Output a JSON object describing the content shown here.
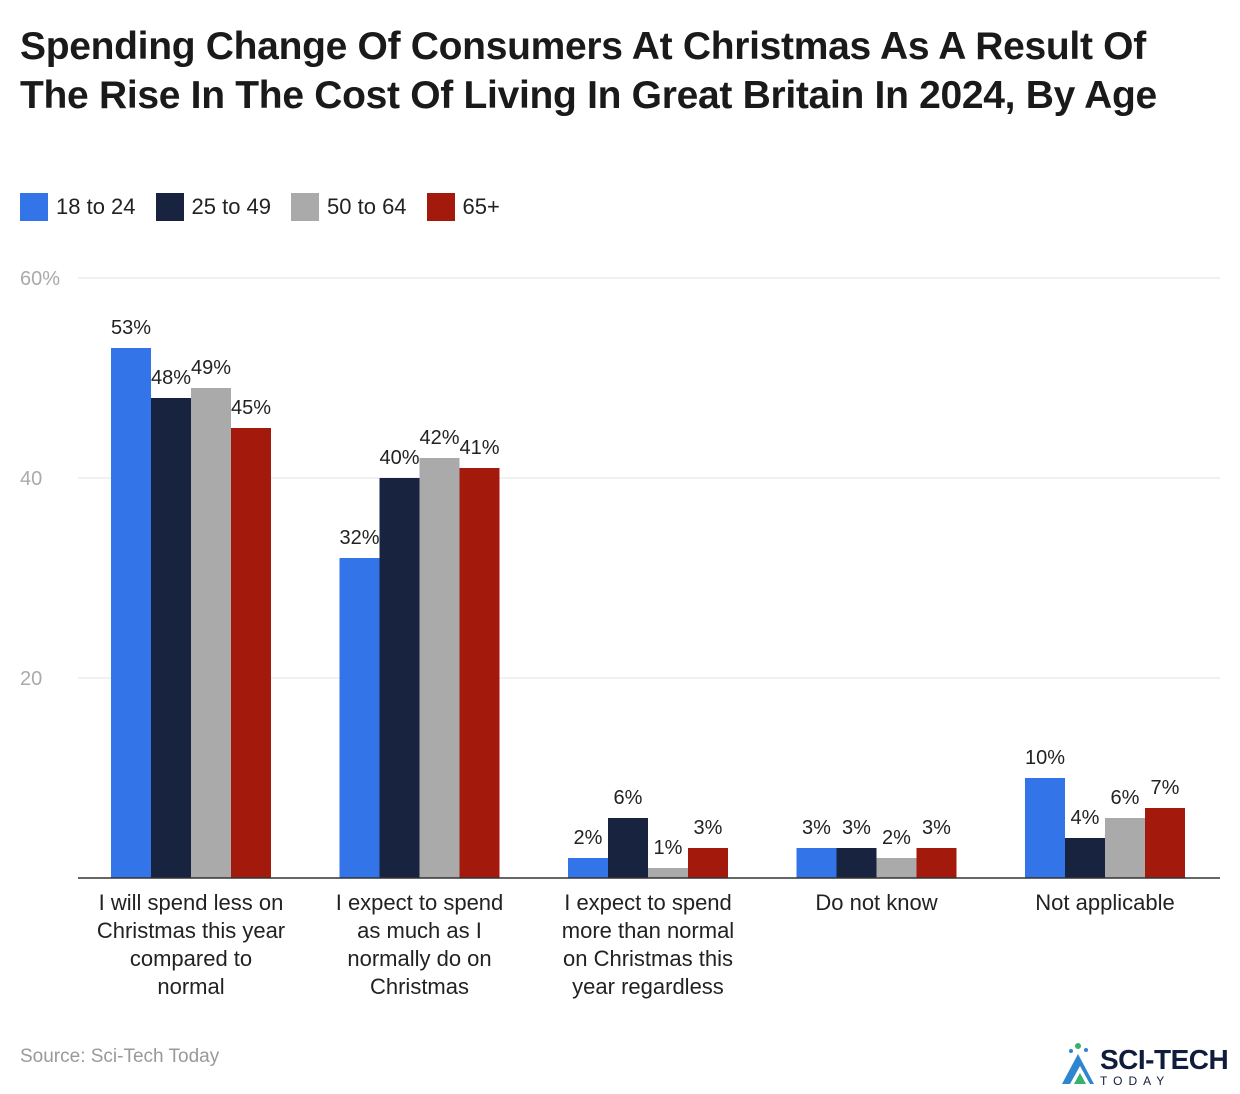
{
  "title": "Spending Change Of Consumers At Christmas As A Result Of The Rise In The Cost Of Living In Great Britain In 2024, By Age",
  "source": "Source: Sci-Tech Today",
  "logo": {
    "main": "SCI-TECH",
    "sub": "TODAY"
  },
  "colors": {
    "grid": "#e3e3e3",
    "axis": "#333333",
    "tick_label": "#aaaaaa",
    "text": "#222222"
  },
  "chart_data": {
    "type": "bar",
    "title": "Spending Change Of Consumers At Christmas As A Result Of The Rise In The Cost Of Living In Great Britain In 2024, By Age",
    "xlabel": "",
    "ylabel": "",
    "ylim": [
      0,
      60
    ],
    "yticks": [
      20,
      40,
      60
    ],
    "ytick_labels": [
      "20",
      "40",
      "60%"
    ],
    "grid": true,
    "legend_position": "top-left",
    "categories": [
      [
        "I will spend less on",
        "Christmas this year",
        "compared to",
        "normal"
      ],
      [
        "I expect to spend",
        "as much as I",
        "normally do on",
        "Christmas"
      ],
      [
        "I expect to spend",
        "more than normal",
        "on Christmas this",
        "year regardless"
      ],
      [
        "Do not know"
      ],
      [
        "Not applicable"
      ]
    ],
    "series": [
      {
        "name": "18 to 24",
        "color": "#3375e8",
        "values": [
          53,
          32,
          2,
          3,
          10
        ],
        "labels": [
          "53%",
          "32%",
          "2%",
          "3%",
          "10%"
        ]
      },
      {
        "name": "25 to 49",
        "color": "#18233f",
        "values": [
          48,
          40,
          6,
          3,
          4
        ],
        "labels": [
          "48%",
          "40%",
          "6%",
          "3%",
          "4%"
        ]
      },
      {
        "name": "50 to 64",
        "color": "#aaaaaa",
        "values": [
          49,
          42,
          1,
          2,
          6
        ],
        "labels": [
          "49%",
          "42%",
          "1%",
          "2%",
          "6%"
        ]
      },
      {
        "name": "65+",
        "color": "#a31a0d",
        "values": [
          45,
          41,
          3,
          3,
          7
        ],
        "labels": [
          "45%",
          "41%",
          "3%",
          "3%",
          "7%"
        ]
      }
    ]
  }
}
